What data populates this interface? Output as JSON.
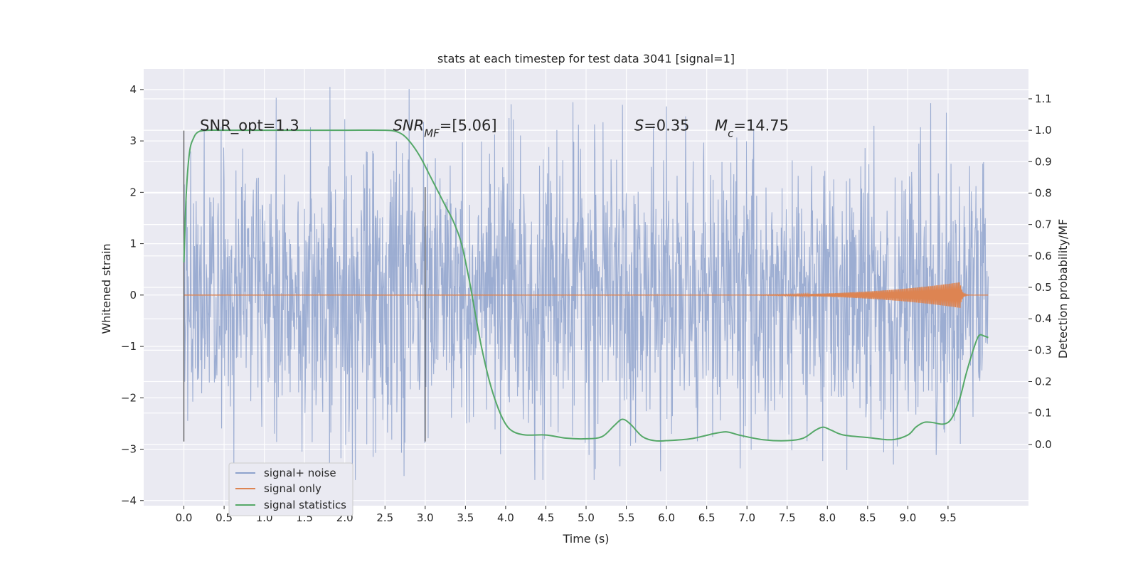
{
  "chart_data": {
    "type": "line",
    "title": "stats at each timestep for test data 3041 [signal=1]",
    "xlabel": "Time (s)",
    "ylabel_left": "Whitened strain",
    "ylabel_right": "Detection probability/MF",
    "xlim": [
      -0.5,
      10.5
    ],
    "ylim_left": [
      -4.1,
      4.4
    ],
    "ylim_right": [
      -0.195,
      1.195
    ],
    "xticks": [
      0.0,
      0.5,
      1.0,
      1.5,
      2.0,
      2.5,
      3.0,
      3.5,
      4.0,
      4.5,
      5.0,
      5.5,
      6.0,
      6.5,
      7.0,
      7.5,
      8.0,
      8.5,
      9.0,
      9.5
    ],
    "xtick_labels": [
      "0.0",
      "0.5",
      "1.0",
      "1.5",
      "2.0",
      "2.5",
      "3.0",
      "3.5",
      "4.0",
      "4.5",
      "5.0",
      "5.5",
      "6.0",
      "6.5",
      "7.0",
      "7.5",
      "8.0",
      "8.5",
      "9.0",
      "9.5"
    ],
    "yticks_left": [
      -4,
      -3,
      -2,
      -1,
      0,
      1,
      2,
      3,
      4
    ],
    "ytick_labels_left": [
      "−4",
      "−3",
      "−2",
      "−1",
      "0",
      "1",
      "2",
      "3",
      "4"
    ],
    "yticks_right": [
      0.0,
      0.1,
      0.2,
      0.3,
      0.4,
      0.5,
      0.6,
      0.7,
      0.8,
      0.9,
      1.0,
      1.1
    ],
    "ytick_labels_right": [
      "0.0",
      "0.1",
      "0.2",
      "0.3",
      "0.4",
      "0.5",
      "0.6",
      "0.7",
      "0.8",
      "0.9",
      "1.0",
      "1.1"
    ],
    "grid": true,
    "legend_position": "lower-left",
    "series": [
      {
        "name": "signal+ noise",
        "color": "#8ea2cc",
        "axis": "left",
        "x_range": [
          0.0,
          10.0
        ],
        "typical_amplitude": 1.4,
        "max_value": 4.05,
        "min_value": -3.6
      },
      {
        "name": "signal only",
        "color": "#dd8452",
        "axis": "left",
        "x_range": [
          0.0,
          10.0
        ],
        "chirp_peak_time": 9.65,
        "chirp_peak_amplitude": 0.25
      },
      {
        "name": "signal statistics",
        "color": "#55a868",
        "axis": "right",
        "x": [
          0.0,
          0.03,
          0.07,
          0.12,
          0.18,
          0.3,
          0.5,
          1.0,
          1.5,
          2.0,
          2.5,
          2.65,
          2.75,
          2.85,
          2.95,
          3.05,
          3.15,
          3.25,
          3.35,
          3.45,
          3.55,
          3.62,
          3.7,
          3.8,
          3.9,
          4.0,
          4.1,
          4.25,
          4.5,
          4.75,
          5.0,
          5.2,
          5.35,
          5.45,
          5.55,
          5.7,
          5.85,
          6.0,
          6.3,
          6.6,
          6.75,
          6.9,
          7.2,
          7.5,
          7.7,
          7.85,
          7.95,
          8.05,
          8.2,
          8.5,
          8.8,
          9.0,
          9.1,
          9.2,
          9.3,
          9.45,
          9.55,
          9.65,
          9.72,
          9.8,
          9.88,
          9.95,
          10.0
        ],
        "values": [
          0.58,
          0.8,
          0.93,
          0.975,
          0.995,
          1.0,
          1.0,
          1.0,
          1.0,
          1.0,
          1.0,
          0.995,
          0.98,
          0.95,
          0.91,
          0.86,
          0.81,
          0.76,
          0.71,
          0.64,
          0.52,
          0.42,
          0.31,
          0.2,
          0.12,
          0.065,
          0.04,
          0.03,
          0.03,
          0.02,
          0.018,
          0.025,
          0.06,
          0.08,
          0.065,
          0.025,
          0.012,
          0.012,
          0.018,
          0.035,
          0.04,
          0.03,
          0.015,
          0.012,
          0.02,
          0.045,
          0.055,
          0.045,
          0.03,
          0.022,
          0.015,
          0.03,
          0.055,
          0.07,
          0.07,
          0.065,
          0.085,
          0.15,
          0.22,
          0.29,
          0.345,
          0.345,
          0.34
        ]
      }
    ],
    "vertical_markers": [
      {
        "x": 0.0,
        "y_range": [
          -2.85,
          3.2
        ]
      },
      {
        "x": 3.0,
        "y_range": [
          -2.85,
          2.1
        ]
      }
    ],
    "annotations": [
      {
        "parts": [
          {
            "text": "SNR_opt=1.3",
            "italic": false
          }
        ],
        "x": 0.2,
        "y": 3.3
      },
      {
        "parts": [
          {
            "text": "SNR",
            "italic": true
          },
          {
            "text": "MF",
            "italic": true,
            "sub": true
          },
          {
            "text": "=[5.06]",
            "italic": false
          }
        ],
        "x": 2.6,
        "y": 3.3
      },
      {
        "parts": [
          {
            "text": "S",
            "italic": true
          },
          {
            "text": "=0.35",
            "italic": false
          }
        ],
        "x": 5.6,
        "y": 3.3
      },
      {
        "parts": [
          {
            "text": "M",
            "italic": true
          },
          {
            "text": "c",
            "italic": true,
            "sub": true
          },
          {
            "text": "=14.75",
            "italic": false
          }
        ],
        "x": 6.6,
        "y": 3.3
      }
    ]
  }
}
